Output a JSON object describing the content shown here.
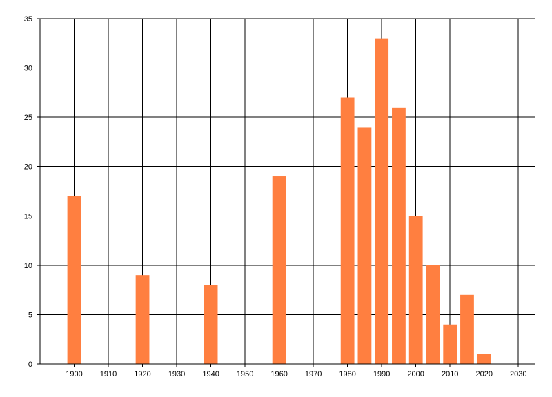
{
  "chart_data": {
    "type": "bar",
    "title": "",
    "xlabel": "",
    "ylabel": "",
    "x": [
      1900,
      1920,
      1940,
      1960,
      1980,
      1985,
      1990,
      1995,
      2000,
      2005,
      2010,
      2015,
      2020
    ],
    "values": [
      17,
      9,
      8,
      19,
      27,
      24,
      33,
      26,
      15,
      10,
      4,
      7,
      1
    ],
    "xlim": [
      1890,
      2035
    ],
    "ylim": [
      0,
      35
    ],
    "xticks": [
      "1900",
      "1910",
      "1920",
      "1930",
      "1940",
      "1950",
      "1960",
      "1970",
      "1980",
      "1990",
      "2000",
      "2010",
      "2020",
      "2030"
    ],
    "yticks": [
      "0",
      "5",
      "10",
      "15",
      "20",
      "25",
      "30",
      "35"
    ],
    "bar_width_years": 4,
    "grid": true,
    "legend": "none",
    "bar_color": "#FF7F40",
    "grid_color": "#000000"
  }
}
